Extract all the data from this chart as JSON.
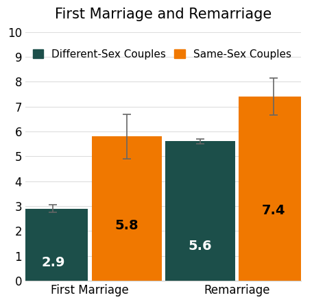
{
  "title": "First Marriage and Remarriage",
  "categories": [
    "First Marriage",
    "Remarriage"
  ],
  "different_sex_values": [
    2.9,
    5.6
  ],
  "same_sex_values": [
    5.8,
    7.4
  ],
  "different_sex_errors": [
    0.15,
    0.1
  ],
  "same_sex_errors": [
    0.9,
    0.75
  ],
  "different_sex_color": "#1c4f4a",
  "same_sex_color": "#f07800",
  "ylim": [
    0,
    10
  ],
  "yticks": [
    0,
    1,
    2,
    3,
    4,
    5,
    6,
    7,
    8,
    9,
    10
  ],
  "legend_labels": [
    "Different-Sex Couples",
    "Same-Sex Couples"
  ],
  "bar_labels_diff": [
    "2.9",
    "5.6"
  ],
  "bar_labels_same": [
    "5.8",
    "7.4"
  ],
  "diff_label_color": "white",
  "same_label_color": "black",
  "background_color": "#ffffff",
  "title_fontsize": 15,
  "label_fontsize": 14,
  "tick_fontsize": 12,
  "legend_fontsize": 11,
  "bar_width": 0.38,
  "group_positions": [
    0.3,
    1.1
  ]
}
